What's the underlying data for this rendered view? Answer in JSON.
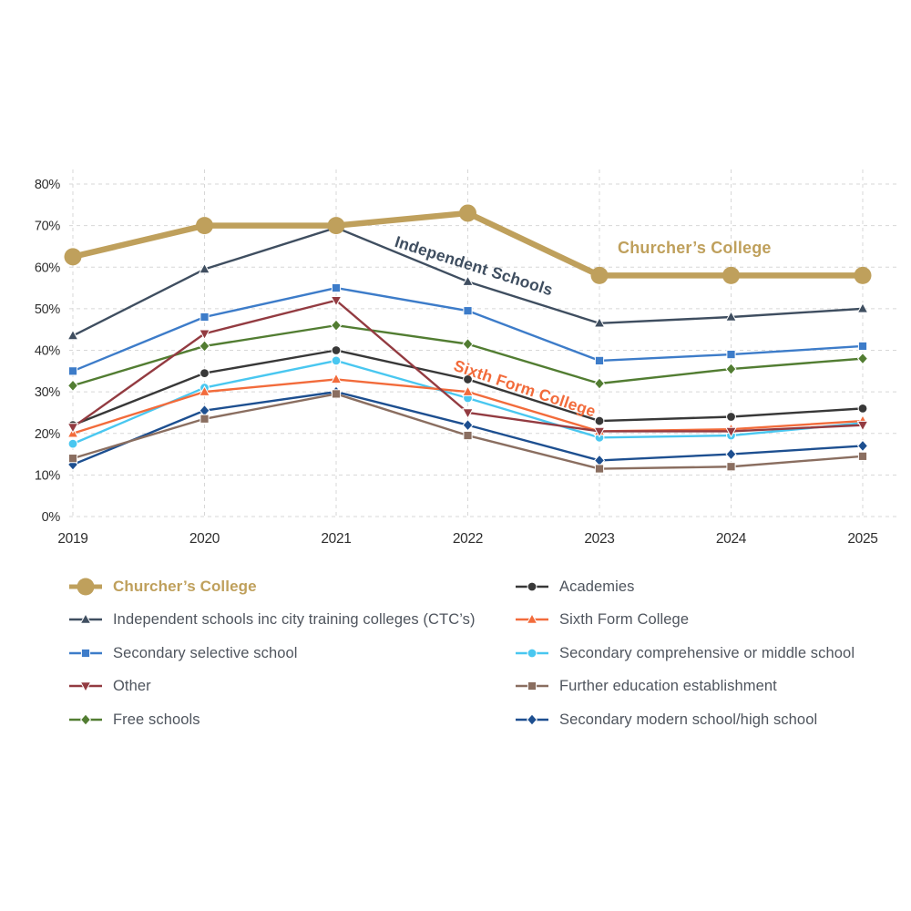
{
  "chart_data": {
    "type": "line",
    "title": "",
    "x_categories": [
      "2019",
      "2020",
      "2021",
      "2022",
      "2023",
      "2024",
      "2025"
    ],
    "y_ticks": [
      "0%",
      "10%",
      "20%",
      "30%",
      "40%",
      "50%",
      "60%",
      "70%",
      "80%"
    ],
    "ylim": [
      0,
      80
    ],
    "grid": "dashed horizontal and vertical",
    "legend_position": "bottom-two-columns",
    "series": [
      {
        "name": "Churcher’s College",
        "color": "#BFA05C",
        "marker": "circle",
        "emphasis": true,
        "values": [
          62.5,
          70,
          70,
          73,
          58,
          58,
          58
        ]
      },
      {
        "name": "Independent schools inc city training colleges (CTC’s)",
        "color": "#3F4E60",
        "marker": "triangle-up",
        "emphasis": false,
        "values": [
          43.5,
          59.5,
          69.5,
          56.5,
          46.5,
          48,
          50
        ]
      },
      {
        "name": "Secondary selective school",
        "color": "#3D7CC9",
        "marker": "square",
        "emphasis": false,
        "values": [
          35,
          48,
          55,
          49.5,
          37.5,
          39,
          41
        ]
      },
      {
        "name": "Other",
        "color": "#933B41",
        "marker": "triangle-down",
        "emphasis": false,
        "values": [
          21.5,
          44,
          52,
          25,
          20.5,
          20.5,
          22
        ]
      },
      {
        "name": "Free schools",
        "color": "#527D32",
        "marker": "diamond",
        "emphasis": false,
        "values": [
          31.5,
          41,
          46,
          41.5,
          32,
          35.5,
          38
        ]
      },
      {
        "name": "Academies",
        "color": "#383838",
        "marker": "circle",
        "emphasis": false,
        "values": [
          22,
          34.5,
          40,
          33,
          23,
          24,
          26
        ]
      },
      {
        "name": "Sixth Form College",
        "color": "#F26B3B",
        "marker": "triangle-up",
        "emphasis": false,
        "values": [
          20,
          30,
          33,
          30,
          20.5,
          21,
          23
        ]
      },
      {
        "name": "Secondary comprehensive or middle school",
        "color": "#49C7F0",
        "marker": "circle",
        "emphasis": false,
        "values": [
          17.5,
          31,
          37.5,
          28.5,
          19,
          19.5,
          22.5
        ]
      },
      {
        "name": "Further education establishment",
        "color": "#8A6E60",
        "marker": "square",
        "emphasis": false,
        "values": [
          14,
          23.5,
          29.5,
          19.5,
          11.5,
          12,
          14.5
        ]
      },
      {
        "name": "Secondary modern school/high school",
        "color": "#1D4F90",
        "marker": "diamond",
        "emphasis": false,
        "values": [
          12.5,
          25.5,
          30,
          22,
          13.5,
          15,
          17
        ]
      }
    ],
    "annotations": [
      {
        "text": "Independent Schools",
        "color": "#3F4E60"
      },
      {
        "text": "Sixth Form College",
        "color": "#F26B3B"
      },
      {
        "text": "Churcher’s College",
        "color": "#BFA05C"
      }
    ],
    "grid_color": "#D7D7D7"
  },
  "legend": {
    "columns": [
      {
        "items": [
          {
            "label": "Churcher’s College",
            "series": 0
          },
          {
            "label": "Independent schools inc city training colleges (CTC’s)",
            "series": 1
          },
          {
            "label": "Secondary selective school",
            "series": 2
          },
          {
            "label": "Other",
            "series": 3
          },
          {
            "label": "Free schools",
            "series": 4
          }
        ]
      },
      {
        "items": [
          {
            "label": "Academies",
            "series": 5
          },
          {
            "label": "Sixth Form College",
            "series": 6
          },
          {
            "label": "Secondary comprehensive or middle school",
            "series": 7
          },
          {
            "label": "Further education establishment",
            "series": 8
          },
          {
            "label": "Secondary modern school/high school",
            "series": 9
          }
        ]
      }
    ]
  }
}
